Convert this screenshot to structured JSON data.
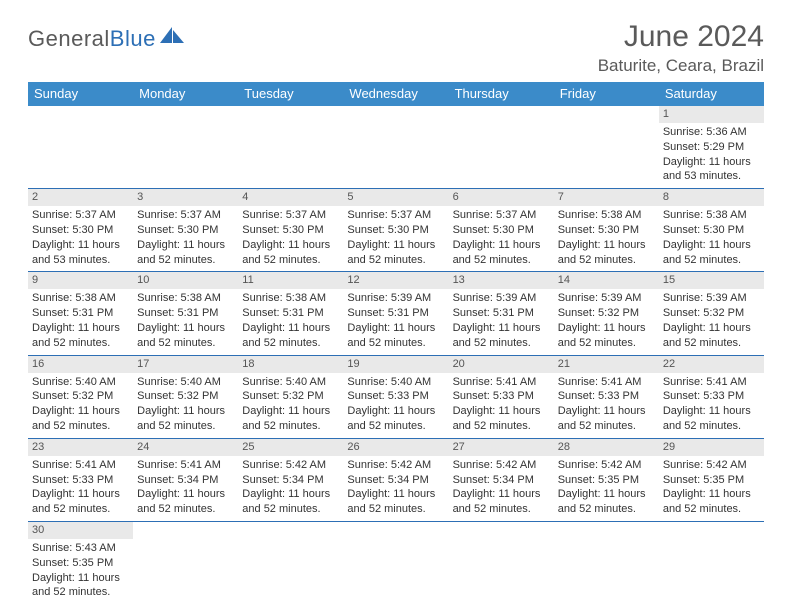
{
  "logo": {
    "word1": "General",
    "word2": "Blue"
  },
  "title": "June 2024",
  "location": "Baturite, Ceara, Brazil",
  "colors": {
    "header_bg": "#3b8bc9",
    "header_text": "#ffffff",
    "row_divider": "#2d6fb5",
    "daynum_bg": "#e9e9e9",
    "text": "#333333",
    "page_bg": "#ffffff"
  },
  "day_headers": [
    "Sunday",
    "Monday",
    "Tuesday",
    "Wednesday",
    "Thursday",
    "Friday",
    "Saturday"
  ],
  "weeks": [
    [
      {
        "blank": true
      },
      {
        "blank": true
      },
      {
        "blank": true
      },
      {
        "blank": true
      },
      {
        "blank": true
      },
      {
        "blank": true
      },
      {
        "day": "1",
        "sunrise": "Sunrise: 5:36 AM",
        "sunset": "Sunset: 5:29 PM",
        "dl1": "Daylight: 11 hours",
        "dl2": "and 53 minutes."
      }
    ],
    [
      {
        "day": "2",
        "sunrise": "Sunrise: 5:37 AM",
        "sunset": "Sunset: 5:30 PM",
        "dl1": "Daylight: 11 hours",
        "dl2": "and 53 minutes."
      },
      {
        "day": "3",
        "sunrise": "Sunrise: 5:37 AM",
        "sunset": "Sunset: 5:30 PM",
        "dl1": "Daylight: 11 hours",
        "dl2": "and 52 minutes."
      },
      {
        "day": "4",
        "sunrise": "Sunrise: 5:37 AM",
        "sunset": "Sunset: 5:30 PM",
        "dl1": "Daylight: 11 hours",
        "dl2": "and 52 minutes."
      },
      {
        "day": "5",
        "sunrise": "Sunrise: 5:37 AM",
        "sunset": "Sunset: 5:30 PM",
        "dl1": "Daylight: 11 hours",
        "dl2": "and 52 minutes."
      },
      {
        "day": "6",
        "sunrise": "Sunrise: 5:37 AM",
        "sunset": "Sunset: 5:30 PM",
        "dl1": "Daylight: 11 hours",
        "dl2": "and 52 minutes."
      },
      {
        "day": "7",
        "sunrise": "Sunrise: 5:38 AM",
        "sunset": "Sunset: 5:30 PM",
        "dl1": "Daylight: 11 hours",
        "dl2": "and 52 minutes."
      },
      {
        "day": "8",
        "sunrise": "Sunrise: 5:38 AM",
        "sunset": "Sunset: 5:30 PM",
        "dl1": "Daylight: 11 hours",
        "dl2": "and 52 minutes."
      }
    ],
    [
      {
        "day": "9",
        "sunrise": "Sunrise: 5:38 AM",
        "sunset": "Sunset: 5:31 PM",
        "dl1": "Daylight: 11 hours",
        "dl2": "and 52 minutes."
      },
      {
        "day": "10",
        "sunrise": "Sunrise: 5:38 AM",
        "sunset": "Sunset: 5:31 PM",
        "dl1": "Daylight: 11 hours",
        "dl2": "and 52 minutes."
      },
      {
        "day": "11",
        "sunrise": "Sunrise: 5:38 AM",
        "sunset": "Sunset: 5:31 PM",
        "dl1": "Daylight: 11 hours",
        "dl2": "and 52 minutes."
      },
      {
        "day": "12",
        "sunrise": "Sunrise: 5:39 AM",
        "sunset": "Sunset: 5:31 PM",
        "dl1": "Daylight: 11 hours",
        "dl2": "and 52 minutes."
      },
      {
        "day": "13",
        "sunrise": "Sunrise: 5:39 AM",
        "sunset": "Sunset: 5:31 PM",
        "dl1": "Daylight: 11 hours",
        "dl2": "and 52 minutes."
      },
      {
        "day": "14",
        "sunrise": "Sunrise: 5:39 AM",
        "sunset": "Sunset: 5:32 PM",
        "dl1": "Daylight: 11 hours",
        "dl2": "and 52 minutes."
      },
      {
        "day": "15",
        "sunrise": "Sunrise: 5:39 AM",
        "sunset": "Sunset: 5:32 PM",
        "dl1": "Daylight: 11 hours",
        "dl2": "and 52 minutes."
      }
    ],
    [
      {
        "day": "16",
        "sunrise": "Sunrise: 5:40 AM",
        "sunset": "Sunset: 5:32 PM",
        "dl1": "Daylight: 11 hours",
        "dl2": "and 52 minutes."
      },
      {
        "day": "17",
        "sunrise": "Sunrise: 5:40 AM",
        "sunset": "Sunset: 5:32 PM",
        "dl1": "Daylight: 11 hours",
        "dl2": "and 52 minutes."
      },
      {
        "day": "18",
        "sunrise": "Sunrise: 5:40 AM",
        "sunset": "Sunset: 5:32 PM",
        "dl1": "Daylight: 11 hours",
        "dl2": "and 52 minutes."
      },
      {
        "day": "19",
        "sunrise": "Sunrise: 5:40 AM",
        "sunset": "Sunset: 5:33 PM",
        "dl1": "Daylight: 11 hours",
        "dl2": "and 52 minutes."
      },
      {
        "day": "20",
        "sunrise": "Sunrise: 5:41 AM",
        "sunset": "Sunset: 5:33 PM",
        "dl1": "Daylight: 11 hours",
        "dl2": "and 52 minutes."
      },
      {
        "day": "21",
        "sunrise": "Sunrise: 5:41 AM",
        "sunset": "Sunset: 5:33 PM",
        "dl1": "Daylight: 11 hours",
        "dl2": "and 52 minutes."
      },
      {
        "day": "22",
        "sunrise": "Sunrise: 5:41 AM",
        "sunset": "Sunset: 5:33 PM",
        "dl1": "Daylight: 11 hours",
        "dl2": "and 52 minutes."
      }
    ],
    [
      {
        "day": "23",
        "sunrise": "Sunrise: 5:41 AM",
        "sunset": "Sunset: 5:33 PM",
        "dl1": "Daylight: 11 hours",
        "dl2": "and 52 minutes."
      },
      {
        "day": "24",
        "sunrise": "Sunrise: 5:41 AM",
        "sunset": "Sunset: 5:34 PM",
        "dl1": "Daylight: 11 hours",
        "dl2": "and 52 minutes."
      },
      {
        "day": "25",
        "sunrise": "Sunrise: 5:42 AM",
        "sunset": "Sunset: 5:34 PM",
        "dl1": "Daylight: 11 hours",
        "dl2": "and 52 minutes."
      },
      {
        "day": "26",
        "sunrise": "Sunrise: 5:42 AM",
        "sunset": "Sunset: 5:34 PM",
        "dl1": "Daylight: 11 hours",
        "dl2": "and 52 minutes."
      },
      {
        "day": "27",
        "sunrise": "Sunrise: 5:42 AM",
        "sunset": "Sunset: 5:34 PM",
        "dl1": "Daylight: 11 hours",
        "dl2": "and 52 minutes."
      },
      {
        "day": "28",
        "sunrise": "Sunrise: 5:42 AM",
        "sunset": "Sunset: 5:35 PM",
        "dl1": "Daylight: 11 hours",
        "dl2": "and 52 minutes."
      },
      {
        "day": "29",
        "sunrise": "Sunrise: 5:42 AM",
        "sunset": "Sunset: 5:35 PM",
        "dl1": "Daylight: 11 hours",
        "dl2": "and 52 minutes."
      }
    ],
    [
      {
        "day": "30",
        "sunrise": "Sunrise: 5:43 AM",
        "sunset": "Sunset: 5:35 PM",
        "dl1": "Daylight: 11 hours",
        "dl2": "and 52 minutes."
      },
      {
        "blank": true
      },
      {
        "blank": true
      },
      {
        "blank": true
      },
      {
        "blank": true
      },
      {
        "blank": true
      },
      {
        "blank": true
      }
    ]
  ]
}
